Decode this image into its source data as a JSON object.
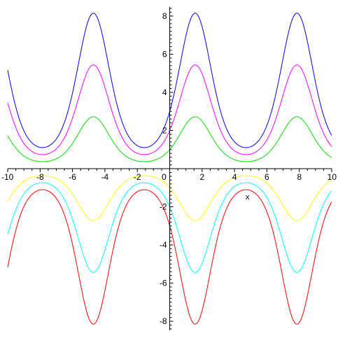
{
  "chart_data": {
    "type": "line",
    "xlabel": "x",
    "ylabel": "",
    "xlim": [
      -10,
      10
    ],
    "ylim": [
      -8.4,
      8.4
    ],
    "x_ticks": [
      -10,
      -8,
      -6,
      -4,
      -2,
      0,
      2,
      4,
      6,
      8,
      10
    ],
    "y_ticks": [
      -8,
      -6,
      -4,
      -2,
      0,
      2,
      4,
      6,
      8
    ],
    "x_tick_labels": [
      "-10",
      "-8",
      "-6",
      "-4",
      "-2",
      "0",
      "2",
      "4",
      "6",
      "8",
      "10"
    ],
    "y_tick_labels": [
      "-8",
      "-6",
      "-4",
      "-2",
      "",
      "2",
      "4",
      "6",
      "8"
    ],
    "grid": false,
    "series": [
      {
        "color": "#0000ff",
        "x": [
          -10,
          -7.854,
          -4.712,
          -1.571,
          1.571,
          4.712,
          7.854,
          10
        ],
        "y": [
          5.2,
          1.11,
          8.15,
          1.11,
          8.15,
          1.11,
          8.15,
          1.8
        ]
      },
      {
        "color": "#ff00ff",
        "x": [
          -10,
          -7.854,
          -4.712,
          -1.571,
          1.571,
          4.712,
          7.854,
          10
        ],
        "y": [
          3.45,
          0.74,
          5.44,
          0.74,
          5.44,
          0.74,
          5.44,
          1.2
        ]
      },
      {
        "color": "#00e000",
        "x": [
          -10,
          -7.854,
          -4.712,
          -1.571,
          1.571,
          4.712,
          7.854,
          10
        ],
        "y": [
          1.73,
          0.37,
          2.72,
          0.37,
          2.72,
          0.37,
          2.72,
          0.6
        ]
      },
      {
        "color": "#ffff00",
        "x": [
          -10,
          -7.854,
          -4.712,
          -1.571,
          1.571,
          4.712,
          7.854,
          10
        ],
        "y": [
          -1.73,
          -0.37,
          -2.72,
          -0.37,
          -2.72,
          -0.37,
          -2.72,
          -0.6
        ]
      },
      {
        "color": "#00ffff",
        "x": [
          -10,
          -7.854,
          -4.712,
          -1.571,
          1.571,
          4.712,
          7.854,
          10
        ],
        "y": [
          -3.45,
          -0.74,
          -5.44,
          -0.74,
          -5.44,
          -0.74,
          -5.44,
          -1.2
        ]
      },
      {
        "color": "#ff0000",
        "x": [
          -10,
          -7.854,
          -4.712,
          -1.571,
          1.571,
          4.712,
          7.854,
          10
        ],
        "y": [
          -5.2,
          -1.11,
          -8.15,
          -1.11,
          -8.15,
          -1.11,
          -8.15,
          -1.8
        ]
      }
    ]
  }
}
